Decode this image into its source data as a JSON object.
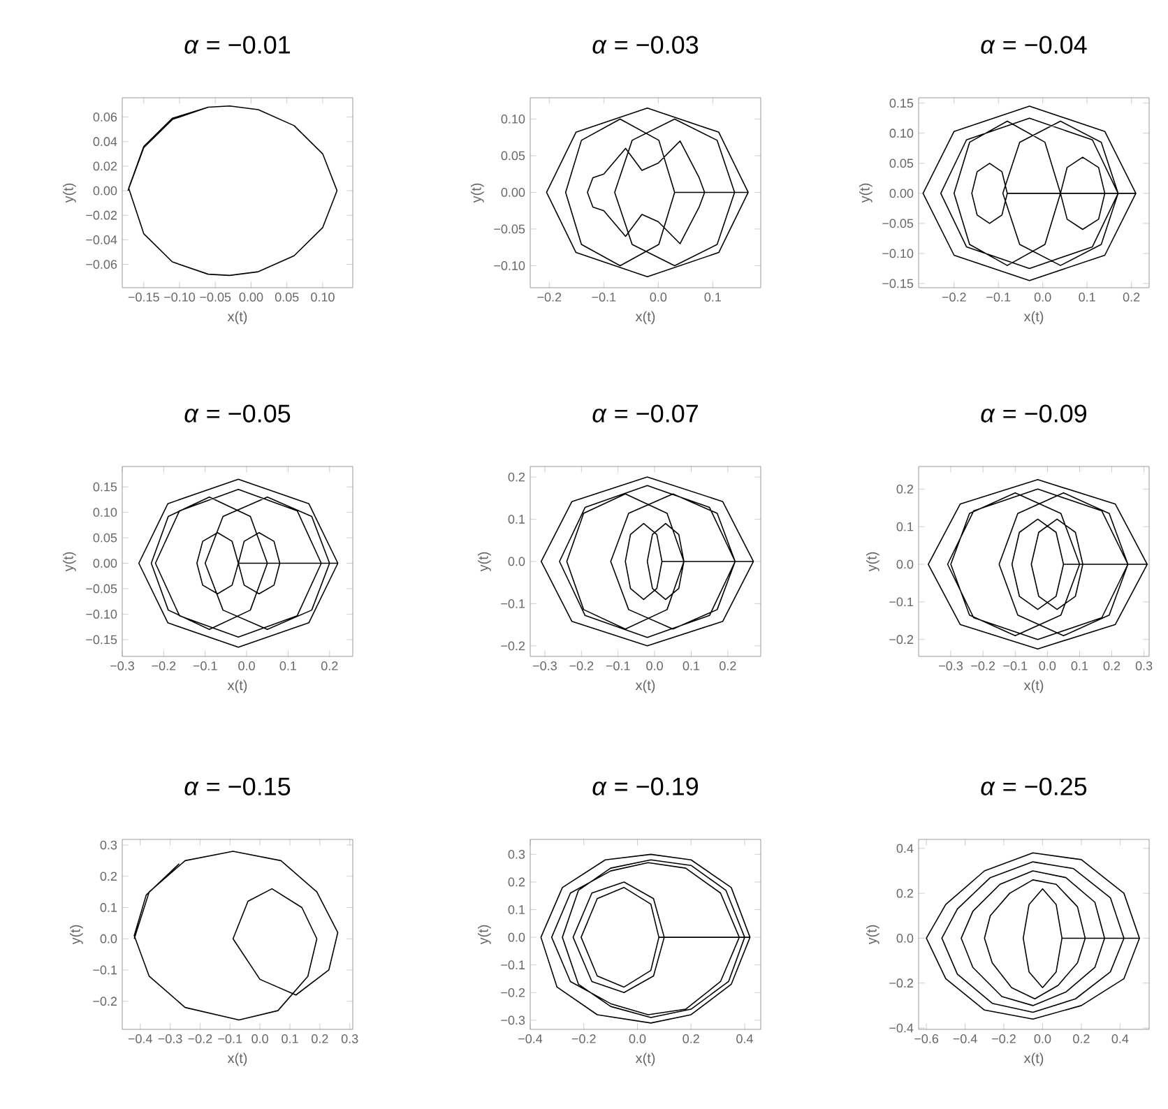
{
  "chart_data": [
    {
      "type": "line",
      "title": "*α* = −0.01",
      "xlabel": "x(t)",
      "ylabel": "y(t)",
      "xlim": [
        -0.18,
        0.142
      ],
      "ylim": [
        -0.079,
        0.0757
      ],
      "xticks": [
        {
          "value": -0.15,
          "label": "−0.15"
        },
        {
          "value": -0.1,
          "label": "−0.10"
        },
        {
          "value": -0.05,
          "label": "−0.05"
        },
        {
          "value": 0,
          "label": "0.00"
        },
        {
          "value": 0.05,
          "label": "0.05"
        },
        {
          "value": 0.1,
          "label": "0.10"
        }
      ],
      "yticks": [
        {
          "value": -0.06,
          "label": "−0.06"
        },
        {
          "value": -0.04,
          "label": "−0.04"
        },
        {
          "value": -0.02,
          "label": "−0.02"
        },
        {
          "value": 0,
          "label": "0.00"
        },
        {
          "value": 0.02,
          "label": "0.02"
        },
        {
          "value": 0.04,
          "label": "0.04"
        },
        {
          "value": 0.06,
          "label": "0.06"
        }
      ],
      "series": [
        {
          "color": "#000000",
          "x": [
            -0.172,
            -0.15,
            -0.11,
            -0.06,
            -0.03,
            0.01,
            0.06,
            0.1,
            0.12,
            0.1,
            0.06,
            0.01,
            -0.03,
            -0.06,
            -0.11,
            -0.15,
            -0.171,
            -0.15,
            -0.11,
            -0.06
          ],
          "values": [
            0,
            0.035,
            0.058,
            0.068,
            0.069,
            0.066,
            0.053,
            0.03,
            0,
            -0.03,
            -0.053,
            -0.066,
            -0.069,
            -0.068,
            -0.058,
            -0.035,
            0.002,
            0.036,
            0.059,
            0.068
          ]
        }
      ]
    },
    {
      "type": "line",
      "title": "*α* = −0.03",
      "xlabel": "x(t)",
      "ylabel": "y(t)",
      "xlim": [
        -0.235,
        0.188
      ],
      "ylim": [
        -0.13,
        0.129
      ],
      "xticks": [
        {
          "value": -0.2,
          "label": "−0.2"
        },
        {
          "value": -0.1,
          "label": "−0.1"
        },
        {
          "value": 0,
          "label": "0.0"
        },
        {
          "value": 0.1,
          "label": "0.1"
        }
      ],
      "yticks": [
        {
          "value": -0.1,
          "label": "−0.10"
        },
        {
          "value": -0.05,
          "label": "−0.05"
        },
        {
          "value": 0,
          "label": "0.00"
        },
        {
          "value": 0.05,
          "label": "0.05"
        },
        {
          "value": 0.1,
          "label": "0.10"
        }
      ],
      "series": [
        {
          "color": "#000000",
          "x": [
            0.165,
            0.111,
            -0.02,
            -0.151,
            -0.205,
            -0.151,
            -0.02,
            0.111,
            0.165,
            0.14,
            0.108,
            0.03,
            -0.048,
            -0.08,
            -0.048,
            0.03,
            0.108,
            0.14,
            0.085,
            0.075,
            0.04,
            0,
            -0.03,
            -0.06,
            -0.1,
            -0.12,
            -0.13,
            -0.12,
            -0.1,
            -0.06,
            -0.03,
            0,
            0.04,
            0.075,
            0.085,
            0.03,
            0.001,
            -0.07,
            -0.141,
            -0.17,
            -0.141,
            -0.07,
            0.001,
            0.03
          ],
          "values": [
            0,
            0.082,
            0.115,
            0.082,
            0,
            -0.082,
            -0.115,
            -0.082,
            0,
            0,
            0.071,
            0.1,
            0.071,
            0,
            -0.071,
            -0.1,
            -0.071,
            0,
            0,
            0.02,
            0.07,
            0.04,
            0.03,
            0.06,
            0.025,
            0.02,
            0,
            -0.02,
            -0.025,
            -0.06,
            -0.03,
            -0.04,
            -0.07,
            -0.02,
            0,
            0,
            0.071,
            0.1,
            0.071,
            0,
            -0.071,
            -0.1,
            -0.071,
            0
          ]
        }
      ]
    },
    {
      "type": "line",
      "title": "*α* = −0.04",
      "xlabel": "x(t)",
      "ylabel": "y(t)",
      "xlim": [
        -0.28,
        0.24
      ],
      "ylim": [
        -0.157,
        0.159
      ],
      "xticks": [
        {
          "value": -0.2,
          "label": "−0.2"
        },
        {
          "value": -0.1,
          "label": "−0.1"
        },
        {
          "value": 0,
          "label": "0.0"
        },
        {
          "value": 0.1,
          "label": "0.1"
        },
        {
          "value": 0.2,
          "label": "0.2"
        }
      ],
      "yticks": [
        {
          "value": -0.15,
          "label": "−0.15"
        },
        {
          "value": -0.1,
          "label": "−0.10"
        },
        {
          "value": -0.05,
          "label": "−0.05"
        },
        {
          "value": 0,
          "label": "0.00"
        },
        {
          "value": 0.05,
          "label": "0.05"
        },
        {
          "value": 0.1,
          "label": "0.10"
        },
        {
          "value": 0.15,
          "label": "0.15"
        }
      ],
      "series": [
        {
          "color": "#000000",
          "x": [
            0.21,
            0.14,
            -0.03,
            -0.2,
            -0.27,
            -0.2,
            -0.03,
            0.14,
            0.21,
            0.17,
            0.112,
            -0.03,
            -0.172,
            -0.23,
            -0.172,
            -0.03,
            0.112,
            0.17,
            0.132,
            0.04,
            -0.052,
            -0.09,
            -0.052,
            0.04,
            0.132,
            0.17,
            0.14,
            0.126,
            0.09,
            0.055,
            0.04,
            0.055,
            0.09,
            0.126,
            0.14,
            0.04,
            0.005,
            -0.08,
            -0.165,
            -0.2,
            -0.165,
            -0.08,
            0.005,
            0.04,
            -0.08,
            -0.092,
            -0.12,
            -0.148,
            -0.16,
            -0.148,
            -0.12,
            -0.092,
            -0.08
          ],
          "values": [
            0,
            0.103,
            0.145,
            0.103,
            0,
            -0.103,
            -0.145,
            -0.103,
            0,
            0,
            0.089,
            0.125,
            0.089,
            0,
            -0.089,
            -0.125,
            -0.089,
            0,
            0.085,
            0.12,
            0.085,
            0,
            -0.085,
            -0.12,
            -0.085,
            0,
            0,
            0.043,
            0.06,
            0.043,
            0,
            -0.043,
            -0.06,
            -0.043,
            0,
            0,
            0.085,
            0.12,
            0.085,
            0,
            -0.085,
            -0.12,
            -0.085,
            0,
            0,
            0.036,
            0.05,
            0.036,
            0,
            -0.036,
            -0.05,
            -0.036,
            0
          ]
        }
      ]
    },
    {
      "type": "line",
      "title": "*α* = −0.05",
      "xlabel": "x(t)",
      "ylabel": "y(t)",
      "xlim": [
        -0.3,
        0.256
      ],
      "ylim": [
        -0.183,
        0.19
      ],
      "xticks": [
        {
          "value": -0.3,
          "label": "−0.3"
        },
        {
          "value": -0.2,
          "label": "−0.2"
        },
        {
          "value": -0.1,
          "label": "−0.1"
        },
        {
          "value": 0,
          "label": "0.0"
        },
        {
          "value": 0.1,
          "label": "0.1"
        },
        {
          "value": 0.2,
          "label": "0.2"
        }
      ],
      "yticks": [
        {
          "value": -0.15,
          "label": "−0.15"
        },
        {
          "value": -0.1,
          "label": "−0.10"
        },
        {
          "value": -0.05,
          "label": "−0.05"
        },
        {
          "value": 0,
          "label": "0.00"
        },
        {
          "value": 0.05,
          "label": "0.05"
        },
        {
          "value": 0.1,
          "label": "0.10"
        },
        {
          "value": 0.15,
          "label": "0.15"
        }
      ],
      "series": [
        {
          "color": "#000000",
          "x": [
            0.22,
            0.15,
            -0.02,
            -0.19,
            -0.26,
            -0.19,
            -0.02,
            0.15,
            0.22,
            0.2,
            0.157,
            0.05,
            -0.057,
            -0.1,
            -0.057,
            0.05,
            0.157,
            0.2,
            0.18,
            0.122,
            -0.02,
            -0.162,
            -0.22,
            -0.162,
            -0.02,
            0.122,
            0.18,
            0.08,
            0.066,
            0.03,
            -0.006,
            -0.02,
            -0.006,
            0.03,
            0.066,
            0.08,
            0.05,
            0.009,
            -0.09,
            -0.189,
            -0.23,
            -0.189,
            -0.09,
            0.009,
            0.05,
            -0.02,
            -0.035,
            -0.07,
            -0.106,
            -0.12,
            -0.106,
            -0.07,
            -0.035,
            -0.02
          ],
          "values": [
            0,
            0.117,
            0.165,
            0.117,
            0,
            -0.117,
            -0.165,
            -0.117,
            0,
            0,
            0.092,
            0.13,
            0.092,
            0,
            -0.092,
            -0.13,
            -0.092,
            0,
            0,
            0.103,
            0.145,
            0.103,
            0,
            -0.103,
            -0.145,
            -0.103,
            0,
            0,
            0.043,
            0.06,
            0.043,
            0,
            -0.043,
            -0.06,
            -0.043,
            0,
            0,
            0.092,
            0.13,
            0.092,
            0,
            -0.092,
            -0.13,
            -0.092,
            0,
            0,
            0.043,
            0.06,
            0.043,
            0,
            -0.043,
            -0.06,
            -0.043,
            0
          ]
        }
      ]
    },
    {
      "type": "line",
      "title": "*α* = −0.07",
      "xlabel": "x(t)",
      "ylabel": "y(t)",
      "xlim": [
        -0.34,
        0.29
      ],
      "ylim": [
        -0.225,
        0.225
      ],
      "xticks": [
        {
          "value": -0.3,
          "label": "−0.3"
        },
        {
          "value": -0.2,
          "label": "−0.2"
        },
        {
          "value": -0.1,
          "label": "−0.1"
        },
        {
          "value": 0,
          "label": "0.0"
        },
        {
          "value": 0.1,
          "label": "0.1"
        },
        {
          "value": 0.2,
          "label": "0.2"
        }
      ],
      "yticks": [
        {
          "value": -0.2,
          "label": "−0.2"
        },
        {
          "value": -0.1,
          "label": "−0.1"
        },
        {
          "value": 0,
          "label": "0.0"
        },
        {
          "value": 0.1,
          "label": "0.1"
        },
        {
          "value": 0.2,
          "label": "0.2"
        }
      ],
      "series": [
        {
          "color": "#000000",
          "x": [
            0.27,
            0.186,
            -0.02,
            -0.226,
            -0.31,
            -0.226,
            -0.02,
            0.186,
            0.27,
            0.22,
            0.171,
            0.05,
            -0.071,
            -0.12,
            -0.071,
            0.05,
            0.171,
            0.22,
            0.15,
            -0.02,
            -0.19,
            -0.26,
            -0.19,
            -0.02,
            0.15,
            0.22,
            0.08,
            0.066,
            0.03,
            -0.006,
            -0.02,
            -0.006,
            0.03,
            0.066,
            0.08,
            0.034,
            -0.08,
            -0.194,
            -0.24,
            -0.194,
            -0.08,
            0.034,
            0.08,
            0.02,
            0.006,
            -0.03,
            -0.066,
            -0.08,
            -0.066,
            -0.03,
            0.006,
            0.02
          ],
          "values": [
            0,
            0.142,
            0.2,
            0.142,
            0,
            -0.142,
            -0.2,
            -0.142,
            0,
            0,
            0.114,
            0.16,
            0.114,
            0,
            -0.114,
            -0.16,
            -0.114,
            0,
            0.128,
            0.18,
            0.128,
            0,
            -0.128,
            -0.18,
            -0.128,
            0,
            0,
            0.064,
            0.09,
            0.064,
            0,
            -0.064,
            -0.09,
            -0.064,
            0,
            0.114,
            0.16,
            0.114,
            0,
            -0.114,
            -0.16,
            -0.114,
            0,
            0,
            0.064,
            0.09,
            0.064,
            0,
            -0.064,
            -0.09,
            -0.064,
            0
          ]
        }
      ]
    },
    {
      "type": "line",
      "title": "*α* = −0.09",
      "xlabel": "x(t)",
      "ylabel": "y(t)",
      "xlim": [
        -0.4,
        0.316
      ],
      "ylim": [
        -0.245,
        0.26
      ],
      "xticks": [
        {
          "value": -0.3,
          "label": "−0.3"
        },
        {
          "value": -0.2,
          "label": "−0.2"
        },
        {
          "value": -0.1,
          "label": "−0.1"
        },
        {
          "value": 0,
          "label": "0.0"
        },
        {
          "value": 0.1,
          "label": "0.1"
        },
        {
          "value": 0.2,
          "label": "0.2"
        },
        {
          "value": 0.3,
          "label": "0.3"
        }
      ],
      "yticks": [
        {
          "value": -0.2,
          "label": "−0.2"
        },
        {
          "value": -0.1,
          "label": "−0.1"
        },
        {
          "value": 0,
          "label": "0.0"
        },
        {
          "value": 0.1,
          "label": "0.1"
        },
        {
          "value": 0.2,
          "label": "0.2"
        }
      ],
      "series": [
        {
          "color": "#000000",
          "x": [
            0.31,
            0.211,
            -0.03,
            -0.271,
            -0.37,
            -0.271,
            -0.03,
            0.211,
            0.31,
            0.25,
            0.192,
            0.05,
            -0.092,
            -0.15,
            -0.092,
            0.05,
            0.192,
            0.25,
            0.169,
            -0.03,
            -0.229,
            -0.31,
            -0.229,
            -0.03,
            0.169,
            0.25,
            0.11,
            0.087,
            0.03,
            -0.027,
            -0.05,
            -0.027,
            0.03,
            0.087,
            0.11,
            0.1,
            0.042,
            -0.1,
            -0.242,
            -0.3,
            -0.242,
            -0.1,
            0.042,
            0.1,
            0.05,
            0.027,
            -0.03,
            -0.087,
            -0.11,
            -0.087,
            -0.03,
            0.027,
            0.05
          ],
          "values": [
            0,
            0.16,
            0.225,
            0.16,
            0,
            -0.16,
            -0.225,
            -0.16,
            0,
            0,
            0.135,
            0.19,
            0.135,
            0,
            -0.135,
            -0.19,
            -0.135,
            0,
            0.142,
            0.2,
            0.142,
            0,
            -0.142,
            -0.2,
            -0.142,
            0,
            0,
            0.085,
            0.12,
            0.085,
            0,
            -0.085,
            -0.12,
            -0.085,
            0,
            0,
            0.135,
            0.19,
            0.135,
            0,
            -0.135,
            -0.19,
            -0.135,
            0,
            0,
            0.085,
            0.12,
            0.085,
            0,
            -0.085,
            -0.12,
            -0.085,
            0
          ]
        }
      ]
    },
    {
      "type": "line",
      "title": "*α* = −0.15",
      "xlabel": "x(t)",
      "ylabel": "y(t)",
      "xlim": [
        -0.46,
        0.31
      ],
      "ylim": [
        -0.29,
        0.318
      ],
      "xticks": [
        {
          "value": -0.4,
          "label": "−0.4"
        },
        {
          "value": -0.3,
          "label": "−0.3"
        },
        {
          "value": -0.2,
          "label": "−0.2"
        },
        {
          "value": -0.1,
          "label": "−0.1"
        },
        {
          "value": 0,
          "label": "0.0"
        },
        {
          "value": 0.1,
          "label": "0.1"
        },
        {
          "value": 0.2,
          "label": "0.2"
        },
        {
          "value": 0.3,
          "label": "0.3"
        }
      ],
      "yticks": [
        {
          "value": -0.2,
          "label": "−0.2"
        },
        {
          "value": -0.1,
          "label": "−0.1"
        },
        {
          "value": 0,
          "label": "0.0"
        },
        {
          "value": 0.1,
          "label": "0.1"
        },
        {
          "value": 0.2,
          "label": "0.2"
        },
        {
          "value": 0.3,
          "label": "0.3"
        }
      ],
      "series": [
        {
          "color": "#000000",
          "x": [
            -0.42,
            -0.37,
            -0.25,
            -0.09,
            0.07,
            0.19,
            0.26,
            0.23,
            0.12,
            0.0,
            -0.09,
            -0.04,
            0.04,
            0.14,
            0.19,
            0.16,
            0.06,
            -0.07,
            -0.25,
            -0.37,
            -0.42,
            -0.38,
            -0.27
          ],
          "values": [
            0,
            0.15,
            0.25,
            0.28,
            0.25,
            0.15,
            0.02,
            -0.1,
            -0.18,
            -0.13,
            0,
            0.12,
            0.16,
            0.1,
            0,
            -0.12,
            -0.23,
            -0.26,
            -0.22,
            -0.12,
            0.01,
            0.14,
            0.24
          ]
        }
      ]
    },
    {
      "type": "line",
      "title": "*α* = −0.19",
      "xlabel": "x(t)",
      "ylabel": "y(t)",
      "xlim": [
        -0.4,
        0.46
      ],
      "ylim": [
        -0.333,
        0.354
      ],
      "xticks": [
        {
          "value": -0.4,
          "label": "−0.4"
        },
        {
          "value": -0.2,
          "label": "−0.2"
        },
        {
          "value": 0,
          "label": "0.0"
        },
        {
          "value": 0.2,
          "label": "0.2"
        },
        {
          "value": 0.4,
          "label": "0.4"
        }
      ],
      "yticks": [
        {
          "value": -0.3,
          "label": "−0.3"
        },
        {
          "value": -0.2,
          "label": "−0.2"
        },
        {
          "value": -0.1,
          "label": "−0.1"
        },
        {
          "value": 0,
          "label": "0.0"
        },
        {
          "value": 0.1,
          "label": "0.1"
        },
        {
          "value": 0.2,
          "label": "0.2"
        },
        {
          "value": 0.3,
          "label": "0.3"
        }
      ],
      "series": [
        {
          "color": "#000000",
          "x": [
            0.42,
            0.35,
            0.2,
            0.05,
            -0.12,
            -0.28,
            -0.36,
            -0.3,
            -0.15,
            0.05,
            0.2,
            0.35,
            0.42,
            0.08,
            0.05,
            -0.05,
            -0.15,
            -0.21,
            -0.15,
            -0.05,
            0.05,
            0.08,
            0.4,
            0.33,
            0.2,
            0.05,
            -0.1,
            -0.22,
            -0.28,
            -0.22,
            -0.1,
            0.05,
            0.2,
            0.34,
            0.4,
            0.1,
            0.06,
            -0.05,
            -0.17,
            -0.24,
            -0.17,
            -0.05,
            0.06,
            0.1,
            0.38,
            0.31,
            0.18,
            0.04,
            -0.1,
            -0.25,
            -0.32,
            -0.25,
            -0.1,
            0.04,
            0.18,
            0.31,
            0.38
          ],
          "values": [
            0,
            0.18,
            0.28,
            0.3,
            0.28,
            0.18,
            0,
            -0.18,
            -0.28,
            -0.31,
            -0.28,
            -0.17,
            0,
            0,
            0.12,
            0.18,
            0.14,
            0,
            -0.14,
            -0.18,
            -0.12,
            0,
            0,
            0.17,
            0.26,
            0.28,
            0.25,
            0.17,
            0,
            -0.17,
            -0.25,
            -0.29,
            -0.26,
            -0.16,
            0,
            0,
            0.14,
            0.2,
            0.16,
            0,
            -0.16,
            -0.2,
            -0.14,
            0,
            0,
            0.16,
            0.25,
            0.27,
            0.24,
            0.16,
            0,
            -0.16,
            -0.24,
            -0.28,
            -0.26,
            -0.16,
            0
          ]
        }
      ]
    },
    {
      "type": "line",
      "title": "*α* = −0.25",
      "xlabel": "x(t)",
      "ylabel": "y(t)",
      "xlim": [
        -0.64,
        0.55
      ],
      "ylim": [
        -0.406,
        0.44
      ],
      "xticks": [
        {
          "value": -0.6,
          "label": "−0.6"
        },
        {
          "value": -0.4,
          "label": "−0.4"
        },
        {
          "value": -0.2,
          "label": "−0.2"
        },
        {
          "value": 0,
          "label": "0.0"
        },
        {
          "value": 0.2,
          "label": "0.2"
        },
        {
          "value": 0.4,
          "label": "0.4"
        }
      ],
      "yticks": [
        {
          "value": -0.4,
          "label": "−0.4"
        },
        {
          "value": -0.2,
          "label": "−0.2"
        },
        {
          "value": 0,
          "label": "0.0"
        },
        {
          "value": 0.2,
          "label": "0.2"
        },
        {
          "value": 0.4,
          "label": "0.4"
        }
      ],
      "series": [
        {
          "color": "#000000",
          "x": [
            0.5,
            0.42,
            0.2,
            -0.05,
            -0.3,
            -0.5,
            -0.6,
            -0.5,
            -0.3,
            -0.05,
            0.2,
            0.42,
            0.5,
            0.1,
            0.07,
            0,
            -0.07,
            -0.1,
            -0.07,
            0,
            0.07,
            0.1,
            0.42,
            0.35,
            0.16,
            -0.05,
            -0.27,
            -0.44,
            -0.52,
            -0.44,
            -0.26,
            -0.05,
            0.17,
            0.35,
            0.42,
            0.22,
            0.18,
            0.07,
            -0.05,
            -0.17,
            -0.27,
            -0.3,
            -0.26,
            -0.16,
            -0.04,
            0.08,
            0.18,
            0.22,
            0.32,
            0.27,
            0.12,
            -0.05,
            -0.22,
            -0.36,
            -0.42,
            -0.36,
            -0.21,
            -0.05,
            0.12,
            0.27,
            0.32
          ],
          "values": [
            0,
            0.2,
            0.35,
            0.38,
            0.3,
            0.15,
            0,
            -0.18,
            -0.32,
            -0.36,
            -0.3,
            -0.18,
            0,
            0,
            0.15,
            0.22,
            0.15,
            0,
            -0.15,
            -0.22,
            -0.15,
            0,
            0,
            0.18,
            0.31,
            0.34,
            0.27,
            0.13,
            0,
            -0.16,
            -0.29,
            -0.33,
            -0.27,
            -0.15,
            0,
            0,
            0.14,
            0.24,
            0.26,
            0.2,
            0.1,
            0,
            -0.11,
            -0.22,
            -0.27,
            -0.21,
            -0.11,
            0,
            0,
            0.16,
            0.27,
            0.3,
            0.24,
            0.12,
            0,
            -0.13,
            -0.26,
            -0.3,
            -0.24,
            -0.13,
            0
          ]
        }
      ]
    }
  ]
}
